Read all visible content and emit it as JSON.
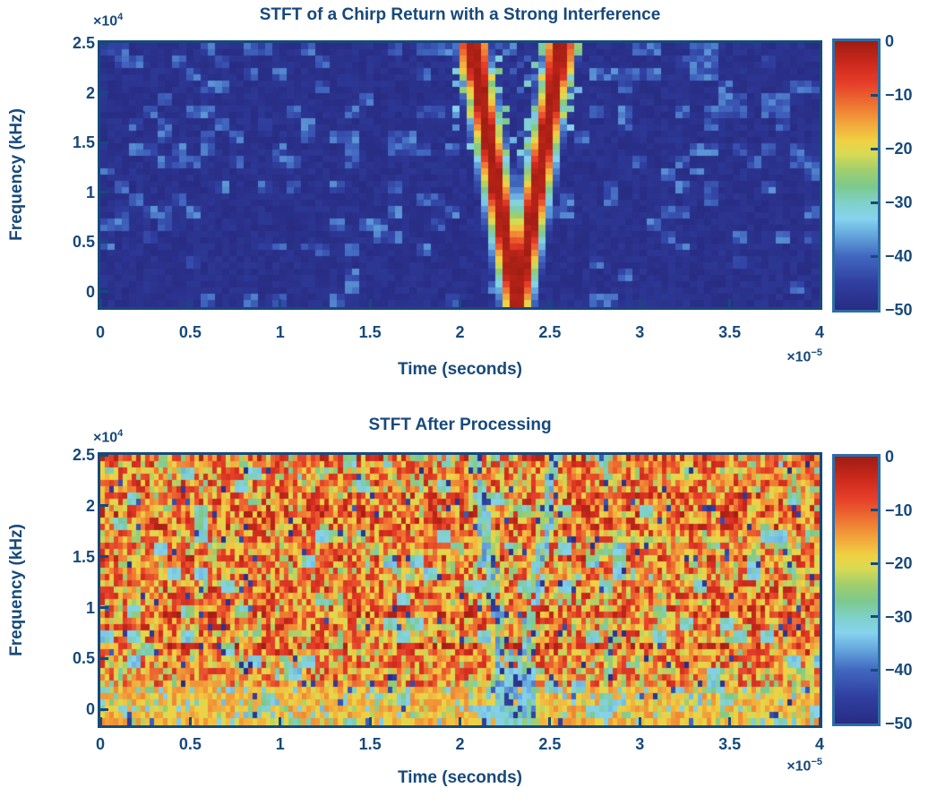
{
  "figure": {
    "background": "#ffffff",
    "text_color": "#17497B",
    "axis_color": "#17497B",
    "colorbar_border_color": "#2D6CA6"
  },
  "colormap": {
    "name": "jet-print",
    "stops": [
      {
        "p": 0.0,
        "c": "#282C84"
      },
      {
        "p": 0.1,
        "c": "#303FA0"
      },
      {
        "p": 0.2,
        "c": "#4167C0"
      },
      {
        "p": 0.28,
        "c": "#66A8DE"
      },
      {
        "p": 0.34,
        "c": "#86D3EE"
      },
      {
        "p": 0.4,
        "c": "#7FD0C8"
      },
      {
        "p": 0.46,
        "c": "#7CC98C"
      },
      {
        "p": 0.52,
        "c": "#A0CE6E"
      },
      {
        "p": 0.58,
        "c": "#D8DA52"
      },
      {
        "p": 0.63,
        "c": "#F0D143"
      },
      {
        "p": 0.69,
        "c": "#F2A83C"
      },
      {
        "p": 0.76,
        "c": "#EE7632"
      },
      {
        "p": 0.84,
        "c": "#E6402A"
      },
      {
        "p": 0.91,
        "c": "#D02A1E"
      },
      {
        "p": 1.0,
        "c": "#9E1C12"
      }
    ]
  },
  "top_plot": {
    "title": "STFT of a Chirp Return with a Strong Interference",
    "xlabel": "Time (seconds)",
    "ylabel": "Frequency (kHz)",
    "y_multiplier": {
      "base": "×10",
      "exp": "4"
    },
    "x_multiplier": {
      "base": "×10",
      "exp": "−5"
    },
    "x_tick_labels": [
      "0",
      "0.5",
      "1",
      "1.5",
      "2",
      "2.5",
      "3",
      "3.5",
      "4"
    ],
    "y_tick_labels": [
      "2.5",
      "2",
      "1.5",
      "1",
      "0.5",
      "0"
    ],
    "colorbar_tick_labels": [
      "0",
      "−10",
      "−20",
      "−30",
      "−40",
      "−50"
    ]
  },
  "bottom_plot": {
    "title": "STFT After Processing",
    "xlabel": "Time (seconds)",
    "ylabel": "Frequency (kHz)",
    "y_multiplier": {
      "base": "×10",
      "exp": "4"
    },
    "x_multiplier": {
      "base": "×10",
      "exp": "−5"
    },
    "x_tick_labels": [
      "0",
      "0.5",
      "1",
      "1.5",
      "2",
      "2.5",
      "3",
      "3.5",
      "4"
    ],
    "y_tick_labels": [
      "2.5",
      "2",
      "1.5",
      "1",
      "0.5",
      "0"
    ],
    "colorbar_tick_labels": [
      "0",
      "−10",
      "−20",
      "−30",
      "−40",
      "−50"
    ]
  },
  "chart_data": [
    {
      "type": "heatmap",
      "title": "STFT of a Chirp Return with a Strong Interference",
      "xlabel": "Time (seconds)",
      "ylabel": "Frequency (kHz)",
      "x_range_s": [
        0,
        4e-05
      ],
      "x_tick_values_s": [
        0,
        5e-06,
        1e-05,
        1.5e-05,
        2e-05,
        2.5e-05,
        3e-05,
        3.5e-05,
        4e-05
      ],
      "y_range_hz": [
        -1550,
        25000
      ],
      "y_tick_values_hz": [
        25000,
        20000,
        15000,
        10000,
        5000,
        0
      ],
      "color_range_db": [
        -50,
        0
      ],
      "colorbar_tick_values_db": [
        0,
        -10,
        -20,
        -30,
        -40,
        -50
      ],
      "legend_position": "right-colorbar",
      "grid": false,
      "background_noise_db": {
        "floor": -50,
        "speckle_max": -37
      },
      "chirp": {
        "shape": "V",
        "peak_db": 0,
        "vertex_time_s": 2.32e-05,
        "vertex_freq_hz": -1550,
        "top_freq_hz": 25000,
        "left_arm_top_time_s": 2.07e-05,
        "right_arm_top_time_s": 2.57e-05,
        "core_halfwidth_s": 3e-07,
        "yellow_halfwidth_s": 5.5e-07,
        "flare_min_freq_hz": 13500,
        "flare_reach_s": 1.6e-06
      },
      "render": {
        "seed": 7,
        "nt": 100,
        "nf": 42
      }
    },
    {
      "type": "heatmap",
      "title": "STFT After Processing",
      "xlabel": "Time (seconds)",
      "ylabel": "Frequency (kHz)",
      "x_range_s": [
        0,
        4e-05
      ],
      "x_tick_values_s": [
        0,
        5e-06,
        1e-05,
        1.5e-05,
        2e-05,
        2.5e-05,
        3e-05,
        3.5e-05,
        4e-05
      ],
      "y_range_hz": [
        -1550,
        25000
      ],
      "y_tick_values_hz": [
        25000,
        20000,
        15000,
        10000,
        5000,
        0
      ],
      "color_range_db": [
        -50,
        0
      ],
      "legend_position": "right-colorbar",
      "grid": false,
      "noise_db": {
        "hot_min": -23,
        "hot_max": -2,
        "cyan_speck_db": -30,
        "dark_strip_db": -45
      },
      "notch": {
        "shape": "V",
        "depth_db": -38,
        "vertex_time_s": 2.31e-05,
        "vertex_freq_hz": -1550,
        "top_freq_hz": 25000,
        "left_arm_top_time_s": 2.08e-05,
        "right_arm_top_time_s": 2.54e-05,
        "arm_halfwidth_s": 3.5e-07,
        "vertex_widen_below_hz": 9000,
        "vertex_extra_halfwidth_s": 5.5e-07
      },
      "render": {
        "seed": 42,
        "nt": 160,
        "nf": 43
      }
    }
  ]
}
